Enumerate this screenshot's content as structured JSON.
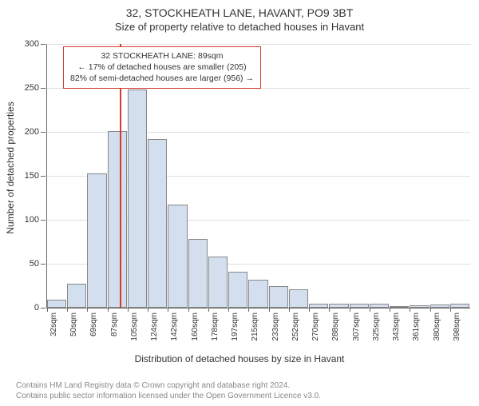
{
  "titles": {
    "main": "32, STOCKHEATH LANE, HAVANT, PO9 3BT",
    "sub": "Size of property relative to detached houses in Havant"
  },
  "ylabel": "Number of detached properties",
  "xlabel": "Distribution of detached houses by size in Havant",
  "footer": {
    "line1": "Contains HM Land Registry data © Crown copyright and database right 2024.",
    "line2": "Contains public sector information licensed under the Open Government Licence v3.0."
  },
  "chart": {
    "type": "histogram",
    "bar_fill": "#d3deee",
    "bar_border": "#888888",
    "grid_color": "#e0e0e0",
    "axis_color": "#666666",
    "background": "#ffffff",
    "ref_line_color": "#d43a2f",
    "ref_value_x": 89,
    "ylim": [
      0,
      300
    ],
    "ytick_step": 50,
    "x_start": 23,
    "x_bin_width": 18.3,
    "bars": [
      {
        "label": "32sqm",
        "value": 9
      },
      {
        "label": "50sqm",
        "value": 27
      },
      {
        "label": "69sqm",
        "value": 153
      },
      {
        "label": "87sqm",
        "value": 201
      },
      {
        "label": "105sqm",
        "value": 248
      },
      {
        "label": "124sqm",
        "value": 192
      },
      {
        "label": "142sqm",
        "value": 117
      },
      {
        "label": "160sqm",
        "value": 78
      },
      {
        "label": "178sqm",
        "value": 58
      },
      {
        "label": "197sqm",
        "value": 41
      },
      {
        "label": "215sqm",
        "value": 32
      },
      {
        "label": "233sqm",
        "value": 25
      },
      {
        "label": "252sqm",
        "value": 21
      },
      {
        "label": "270sqm",
        "value": 5
      },
      {
        "label": "288sqm",
        "value": 5
      },
      {
        "label": "307sqm",
        "value": 5
      },
      {
        "label": "325sqm",
        "value": 5
      },
      {
        "label": "343sqm",
        "value": 2
      },
      {
        "label": "361sqm",
        "value": 3
      },
      {
        "label": "380sqm",
        "value": 4
      },
      {
        "label": "398sqm",
        "value": 5
      }
    ],
    "info_box": {
      "line1": "32 STOCKHEATH LANE: 89sqm",
      "line2": "← 17% of detached houses are smaller (205)",
      "line3": "82% of semi-detached houses are larger (956) →"
    },
    "fontsize_title": 14,
    "fontsize_sub": 13,
    "fontsize_axis_label": 12,
    "fontsize_tick": 11,
    "fontsize_xtick": 10,
    "fontsize_infobox": 10.5,
    "fontsize_footer": 10
  }
}
